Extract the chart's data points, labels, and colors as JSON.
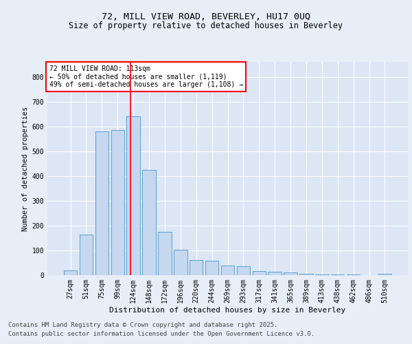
{
  "title_line1": "72, MILL VIEW ROAD, BEVERLEY, HU17 0UQ",
  "title_line2": "Size of property relative to detached houses in Beverley",
  "xlabel": "Distribution of detached houses by size in Beverley",
  "ylabel": "Number of detached properties",
  "categories": [
    "27sqm",
    "51sqm",
    "75sqm",
    "99sqm",
    "124sqm",
    "148sqm",
    "172sqm",
    "196sqm",
    "220sqm",
    "244sqm",
    "269sqm",
    "293sqm",
    "317sqm",
    "341sqm",
    "365sqm",
    "389sqm",
    "413sqm",
    "438sqm",
    "462sqm",
    "486sqm",
    "510sqm"
  ],
  "values": [
    20,
    165,
    580,
    585,
    640,
    425,
    175,
    103,
    60,
    58,
    40,
    35,
    18,
    15,
    10,
    6,
    4,
    3,
    2,
    1,
    6
  ],
  "bar_color": "#c5d8f0",
  "bar_edge_color": "#5a9fd4",
  "vline_x_index": 3.83,
  "vline_color": "red",
  "annotation_text": "72 MILL VIEW ROAD: 113sqm\n← 50% of detached houses are smaller (1,119)\n49% of semi-detached houses are larger (1,108) →",
  "annotation_box_color": "white",
  "annotation_box_edge_color": "red",
  "ylim": [
    0,
    860
  ],
  "yticks": [
    0,
    100,
    200,
    300,
    400,
    500,
    600,
    700,
    800
  ],
  "bg_color": "#e8eef7",
  "plot_bg_color": "#dce6f5",
  "footer_line1": "Contains HM Land Registry data © Crown copyright and database right 2025.",
  "footer_line2": "Contains public sector information licensed under the Open Government Licence v3.0.",
  "title_fontsize": 9.5,
  "subtitle_fontsize": 8.5,
  "footer_fontsize": 6.5,
  "tick_fontsize": 7,
  "ylabel_fontsize": 7.5,
  "xlabel_fontsize": 8
}
